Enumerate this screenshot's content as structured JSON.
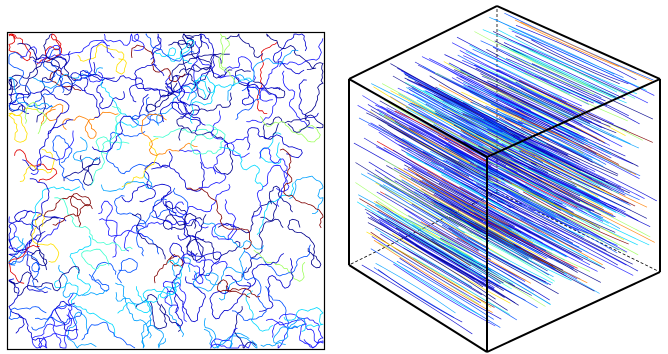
{
  "figure": {
    "panels": [
      {
        "kind": "2d-projection-of-random-curves",
        "frame": true
      },
      {
        "kind": "3d-cube-of-aligned-curves",
        "frame": true
      }
    ],
    "palette": [
      "#00008b",
      "#0000cd",
      "#1a1aff",
      "#0050ff",
      "#00a0ff",
      "#00d8ff",
      "#40ffd0",
      "#a0ff60",
      "#ffe000",
      "#ff8000",
      "#e00000",
      "#800000"
    ],
    "palette_weights": [
      5,
      6,
      5,
      3,
      3,
      3,
      1,
      1,
      1,
      1,
      1,
      1
    ]
  }
}
